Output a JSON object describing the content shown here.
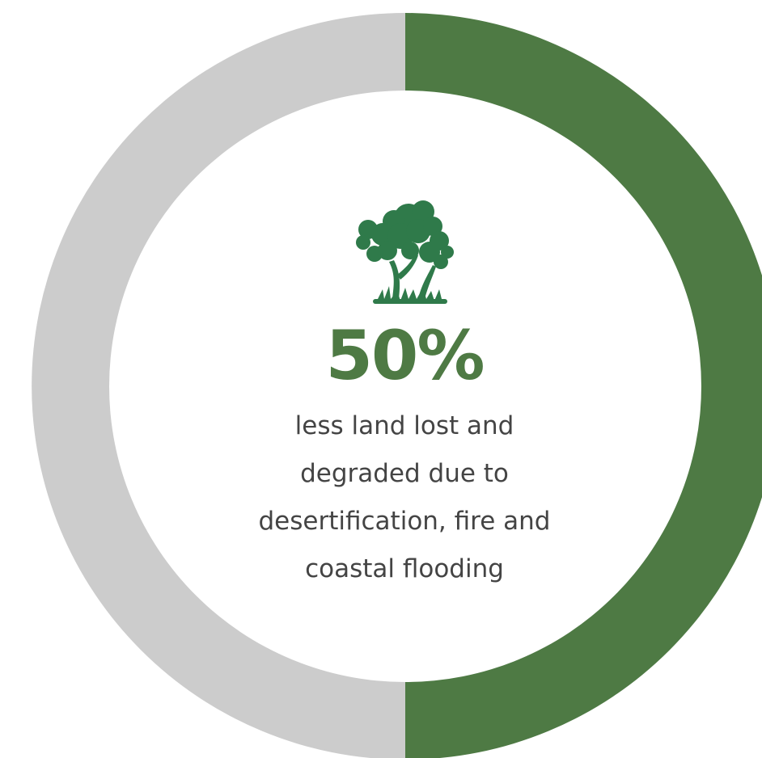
{
  "chart_data": {
    "type": "pie",
    "style": "donut",
    "slices": [
      {
        "value": 50,
        "color": "#4e7a44"
      },
      {
        "value": 50,
        "color": "#cccccc"
      }
    ],
    "center_value": "50%",
    "center_text_lines": [
      "less land lost and",
      "degraded due to",
      "desertification, fire and",
      "coastal flooding"
    ]
  },
  "icon": "tree-icon",
  "colors": {
    "accent": "#4e7a44",
    "track": "#cccccc",
    "icon": "#2f7a4a",
    "text": "#444444"
  }
}
